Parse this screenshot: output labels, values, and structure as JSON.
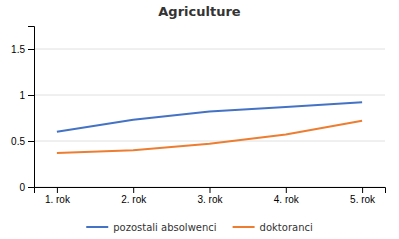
{
  "chart_data": {
    "type": "line",
    "title": "Agriculture",
    "x": [
      1,
      2,
      3,
      4,
      5
    ],
    "xlim": [
      0.7,
      5.3
    ],
    "xticks": [
      {
        "value": 1,
        "label": "1. rok"
      },
      {
        "value": 2,
        "label": "2. rok"
      },
      {
        "value": 3,
        "label": "3. rok"
      },
      {
        "value": 4,
        "label": "4. rok"
      },
      {
        "value": 5,
        "label": "5. rok"
      }
    ],
    "series": [
      {
        "name": "pozostali absolwenci",
        "color": "#4472C4",
        "values": [
          0.6,
          0.73,
          0.82,
          0.87,
          0.92
        ]
      },
      {
        "name": "doktoranci",
        "color": "#ED7D31",
        "values": [
          0.37,
          0.4,
          0.47,
          0.57,
          0.72
        ]
      }
    ],
    "ylim": [
      0,
      1.75
    ],
    "yticks": [
      0,
      0.5,
      1,
      1.5
    ],
    "grid": true,
    "legend": "bottom"
  }
}
